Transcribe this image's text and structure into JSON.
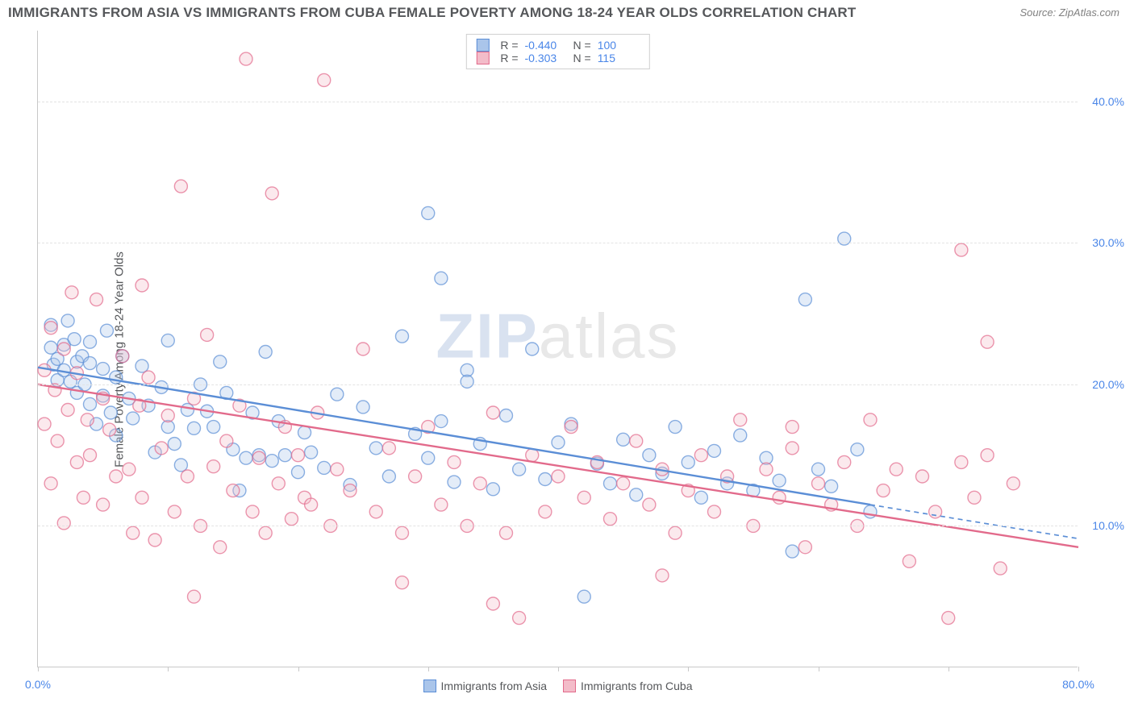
{
  "title": "IMMIGRANTS FROM ASIA VS IMMIGRANTS FROM CUBA FEMALE POVERTY AMONG 18-24 YEAR OLDS CORRELATION CHART",
  "source": "Source: ZipAtlas.com",
  "ylabel": "Female Poverty Among 18-24 Year Olds",
  "watermark_bold": "ZIP",
  "watermark_light": "atlas",
  "chart": {
    "type": "scatter",
    "xlim": [
      0,
      80
    ],
    "ylim": [
      0,
      45
    ],
    "xticks": [
      0,
      10,
      20,
      30,
      40,
      50,
      60,
      70,
      80
    ],
    "xlabels": {
      "0": "0.0%",
      "80": "80.0%"
    },
    "yticks": [
      10,
      20,
      30,
      40
    ],
    "ylabels": {
      "10": "10.0%",
      "20": "20.0%",
      "30": "30.0%",
      "40": "40.0%"
    },
    "background_color": "#ffffff",
    "grid_color": "#e3e3e3",
    "axis_color": "#c8c8c8",
    "tick_label_color": "#4a86e8",
    "title_color": "#55575a",
    "title_fontsize": 17,
    "label_fontsize": 15,
    "tick_fontsize": 14,
    "marker_radius": 8,
    "marker_fill_opacity": 0.33,
    "marker_stroke_width": 1.4,
    "series": [
      {
        "name": "Immigrants from Asia",
        "color": "#5b8ed6",
        "fill": "#aac5ea",
        "R": "-0.440",
        "N": "100",
        "trend": {
          "x1": 0,
          "y1": 21.2,
          "x2": 64,
          "y2": 11.5,
          "dash_x2": 80,
          "dash_y2": 9.1,
          "width": 2.4
        },
        "points": [
          [
            1,
            24.2
          ],
          [
            1,
            22.6
          ],
          [
            1.2,
            21.4
          ],
          [
            1.5,
            21.8
          ],
          [
            1.5,
            20.3
          ],
          [
            2,
            22.8
          ],
          [
            2,
            21.0
          ],
          [
            2.3,
            24.5
          ],
          [
            2.5,
            20.2
          ],
          [
            2.8,
            23.2
          ],
          [
            3,
            21.6
          ],
          [
            3,
            19.4
          ],
          [
            3.4,
            22.0
          ],
          [
            3.6,
            20.0
          ],
          [
            4,
            23.0
          ],
          [
            4,
            18.6
          ],
          [
            4.5,
            17.2
          ],
          [
            5,
            21.1
          ],
          [
            5,
            19.2
          ],
          [
            5.3,
            23.8
          ],
          [
            5.6,
            18.0
          ],
          [
            6,
            20.5
          ],
          [
            6,
            16.4
          ],
          [
            6.5,
            22.0
          ],
          [
            7,
            19.0
          ],
          [
            7.3,
            17.6
          ],
          [
            8,
            21.3
          ],
          [
            8.5,
            18.5
          ],
          [
            9,
            15.2
          ],
          [
            9.5,
            19.8
          ],
          [
            10,
            23.1
          ],
          [
            10,
            17.0
          ],
          [
            10.5,
            15.8
          ],
          [
            11,
            14.3
          ],
          [
            11.5,
            18.2
          ],
          [
            12,
            16.9
          ],
          [
            12.5,
            20.0
          ],
          [
            13,
            18.1
          ],
          [
            13.5,
            17.0
          ],
          [
            14,
            21.6
          ],
          [
            14.5,
            19.4
          ],
          [
            15,
            15.4
          ],
          [
            15.5,
            12.5
          ],
          [
            16,
            14.8
          ],
          [
            16.5,
            18.0
          ],
          [
            17,
            15.0
          ],
          [
            17.5,
            22.3
          ],
          [
            18,
            14.6
          ],
          [
            18.5,
            17.4
          ],
          [
            19,
            15.0
          ],
          [
            20,
            13.8
          ],
          [
            20.5,
            16.6
          ],
          [
            21,
            15.2
          ],
          [
            22,
            14.1
          ],
          [
            23,
            19.3
          ],
          [
            24,
            12.9
          ],
          [
            25,
            18.4
          ],
          [
            26,
            15.5
          ],
          [
            27,
            13.5
          ],
          [
            28,
            23.4
          ],
          [
            29,
            16.5
          ],
          [
            30,
            14.8
          ],
          [
            30,
            32.1
          ],
          [
            31,
            17.4
          ],
          [
            32,
            13.1
          ],
          [
            33,
            21.0
          ],
          [
            34,
            15.8
          ],
          [
            35,
            12.6
          ],
          [
            36,
            17.8
          ],
          [
            37,
            14.0
          ],
          [
            38,
            22.5
          ],
          [
            39,
            13.3
          ],
          [
            40,
            15.9
          ],
          [
            41,
            17.2
          ],
          [
            42,
            5.0
          ],
          [
            43,
            14.4
          ],
          [
            44,
            13.0
          ],
          [
            45,
            16.1
          ],
          [
            46,
            12.2
          ],
          [
            47,
            15.0
          ],
          [
            48,
            13.7
          ],
          [
            49,
            17.0
          ],
          [
            50,
            14.5
          ],
          [
            51,
            12.0
          ],
          [
            52,
            15.3
          ],
          [
            53,
            13.0
          ],
          [
            54,
            16.4
          ],
          [
            55,
            12.5
          ],
          [
            56,
            14.8
          ],
          [
            57,
            13.2
          ],
          [
            58,
            8.2
          ],
          [
            59,
            26.0
          ],
          [
            60,
            14.0
          ],
          [
            61,
            12.8
          ],
          [
            62,
            30.3
          ],
          [
            63,
            15.4
          ],
          [
            64,
            11.0
          ],
          [
            31,
            27.5
          ],
          [
            33,
            20.2
          ],
          [
            4,
            21.5
          ]
        ]
      },
      {
        "name": "Immigrants from Cuba",
        "color": "#e26a8b",
        "fill": "#f3bcc9",
        "R": "-0.303",
        "N": "115",
        "trend": {
          "x1": 0,
          "y1": 20.0,
          "x2": 80,
          "y2": 8.5,
          "width": 2.4
        },
        "points": [
          [
            0.5,
            21.0
          ],
          [
            0.5,
            17.2
          ],
          [
            1,
            24.0
          ],
          [
            1,
            13.0
          ],
          [
            1.3,
            19.6
          ],
          [
            1.5,
            16.0
          ],
          [
            2,
            22.5
          ],
          [
            2,
            10.2
          ],
          [
            2.3,
            18.2
          ],
          [
            2.6,
            26.5
          ],
          [
            3,
            14.5
          ],
          [
            3,
            20.8
          ],
          [
            3.5,
            12.0
          ],
          [
            3.8,
            17.5
          ],
          [
            4,
            15.0
          ],
          [
            4.5,
            26.0
          ],
          [
            5,
            19.0
          ],
          [
            5,
            11.5
          ],
          [
            5.5,
            16.8
          ],
          [
            6,
            13.5
          ],
          [
            6.5,
            22.0
          ],
          [
            7,
            14.0
          ],
          [
            7.3,
            9.5
          ],
          [
            7.8,
            18.5
          ],
          [
            8,
            12.0
          ],
          [
            8.5,
            20.5
          ],
          [
            9,
            9.0
          ],
          [
            9.5,
            15.5
          ],
          [
            10,
            17.8
          ],
          [
            10.5,
            11.0
          ],
          [
            11,
            34.0
          ],
          [
            11.5,
            13.5
          ],
          [
            12,
            19.0
          ],
          [
            12.5,
            10.0
          ],
          [
            13,
            23.5
          ],
          [
            13.5,
            14.2
          ],
          [
            14,
            8.5
          ],
          [
            14.5,
            16.0
          ],
          [
            15,
            12.5
          ],
          [
            15.5,
            18.5
          ],
          [
            16,
            43.0
          ],
          [
            16.5,
            11.0
          ],
          [
            17,
            14.8
          ],
          [
            17.5,
            9.5
          ],
          [
            18,
            33.5
          ],
          [
            18.5,
            13.0
          ],
          [
            19,
            17.0
          ],
          [
            19.5,
            10.5
          ],
          [
            20,
            15.0
          ],
          [
            20.5,
            12.0
          ],
          [
            21,
            11.5
          ],
          [
            21.5,
            18.0
          ],
          [
            22,
            41.5
          ],
          [
            22.5,
            10.0
          ],
          [
            23,
            14.0
          ],
          [
            24,
            12.5
          ],
          [
            25,
            22.5
          ],
          [
            26,
            11.0
          ],
          [
            27,
            15.5
          ],
          [
            28,
            9.5
          ],
          [
            29,
            13.5
          ],
          [
            30,
            17.0
          ],
          [
            31,
            11.5
          ],
          [
            32,
            14.5
          ],
          [
            33,
            10.0
          ],
          [
            34,
            13.0
          ],
          [
            35,
            18.0
          ],
          [
            36,
            9.5
          ],
          [
            37,
            3.5
          ],
          [
            38,
            15.0
          ],
          [
            39,
            11.0
          ],
          [
            40,
            13.5
          ],
          [
            41,
            17.0
          ],
          [
            42,
            12.0
          ],
          [
            43,
            14.5
          ],
          [
            44,
            10.5
          ],
          [
            45,
            13.0
          ],
          [
            46,
            16.0
          ],
          [
            47,
            11.5
          ],
          [
            48,
            14.0
          ],
          [
            49,
            9.5
          ],
          [
            50,
            12.5
          ],
          [
            51,
            15.0
          ],
          [
            52,
            11.0
          ],
          [
            53,
            13.5
          ],
          [
            54,
            17.5
          ],
          [
            55,
            10.0
          ],
          [
            56,
            14.0
          ],
          [
            57,
            12.0
          ],
          [
            58,
            15.5
          ],
          [
            59,
            8.5
          ],
          [
            60,
            13.0
          ],
          [
            61,
            11.5
          ],
          [
            62,
            14.5
          ],
          [
            63,
            10.0
          ],
          [
            64,
            17.5
          ],
          [
            65,
            12.5
          ],
          [
            66,
            14.0
          ],
          [
            67,
            7.5
          ],
          [
            68,
            13.5
          ],
          [
            69,
            11.0
          ],
          [
            70,
            3.5
          ],
          [
            71,
            14.5
          ],
          [
            71,
            29.5
          ],
          [
            72,
            12.0
          ],
          [
            73,
            15.0
          ],
          [
            73,
            23.0
          ],
          [
            74,
            7.0
          ],
          [
            75,
            13.0
          ],
          [
            12,
            5.0
          ],
          [
            28,
            6.0
          ],
          [
            35,
            4.5
          ],
          [
            48,
            6.5
          ],
          [
            8,
            27.0
          ],
          [
            58,
            17.0
          ]
        ]
      }
    ]
  },
  "bottom_legend": [
    {
      "label": "Immigrants from Asia",
      "fill": "#aac5ea",
      "stroke": "#5b8ed6"
    },
    {
      "label": "Immigrants from Cuba",
      "fill": "#f3bcc9",
      "stroke": "#e26a8b"
    }
  ]
}
